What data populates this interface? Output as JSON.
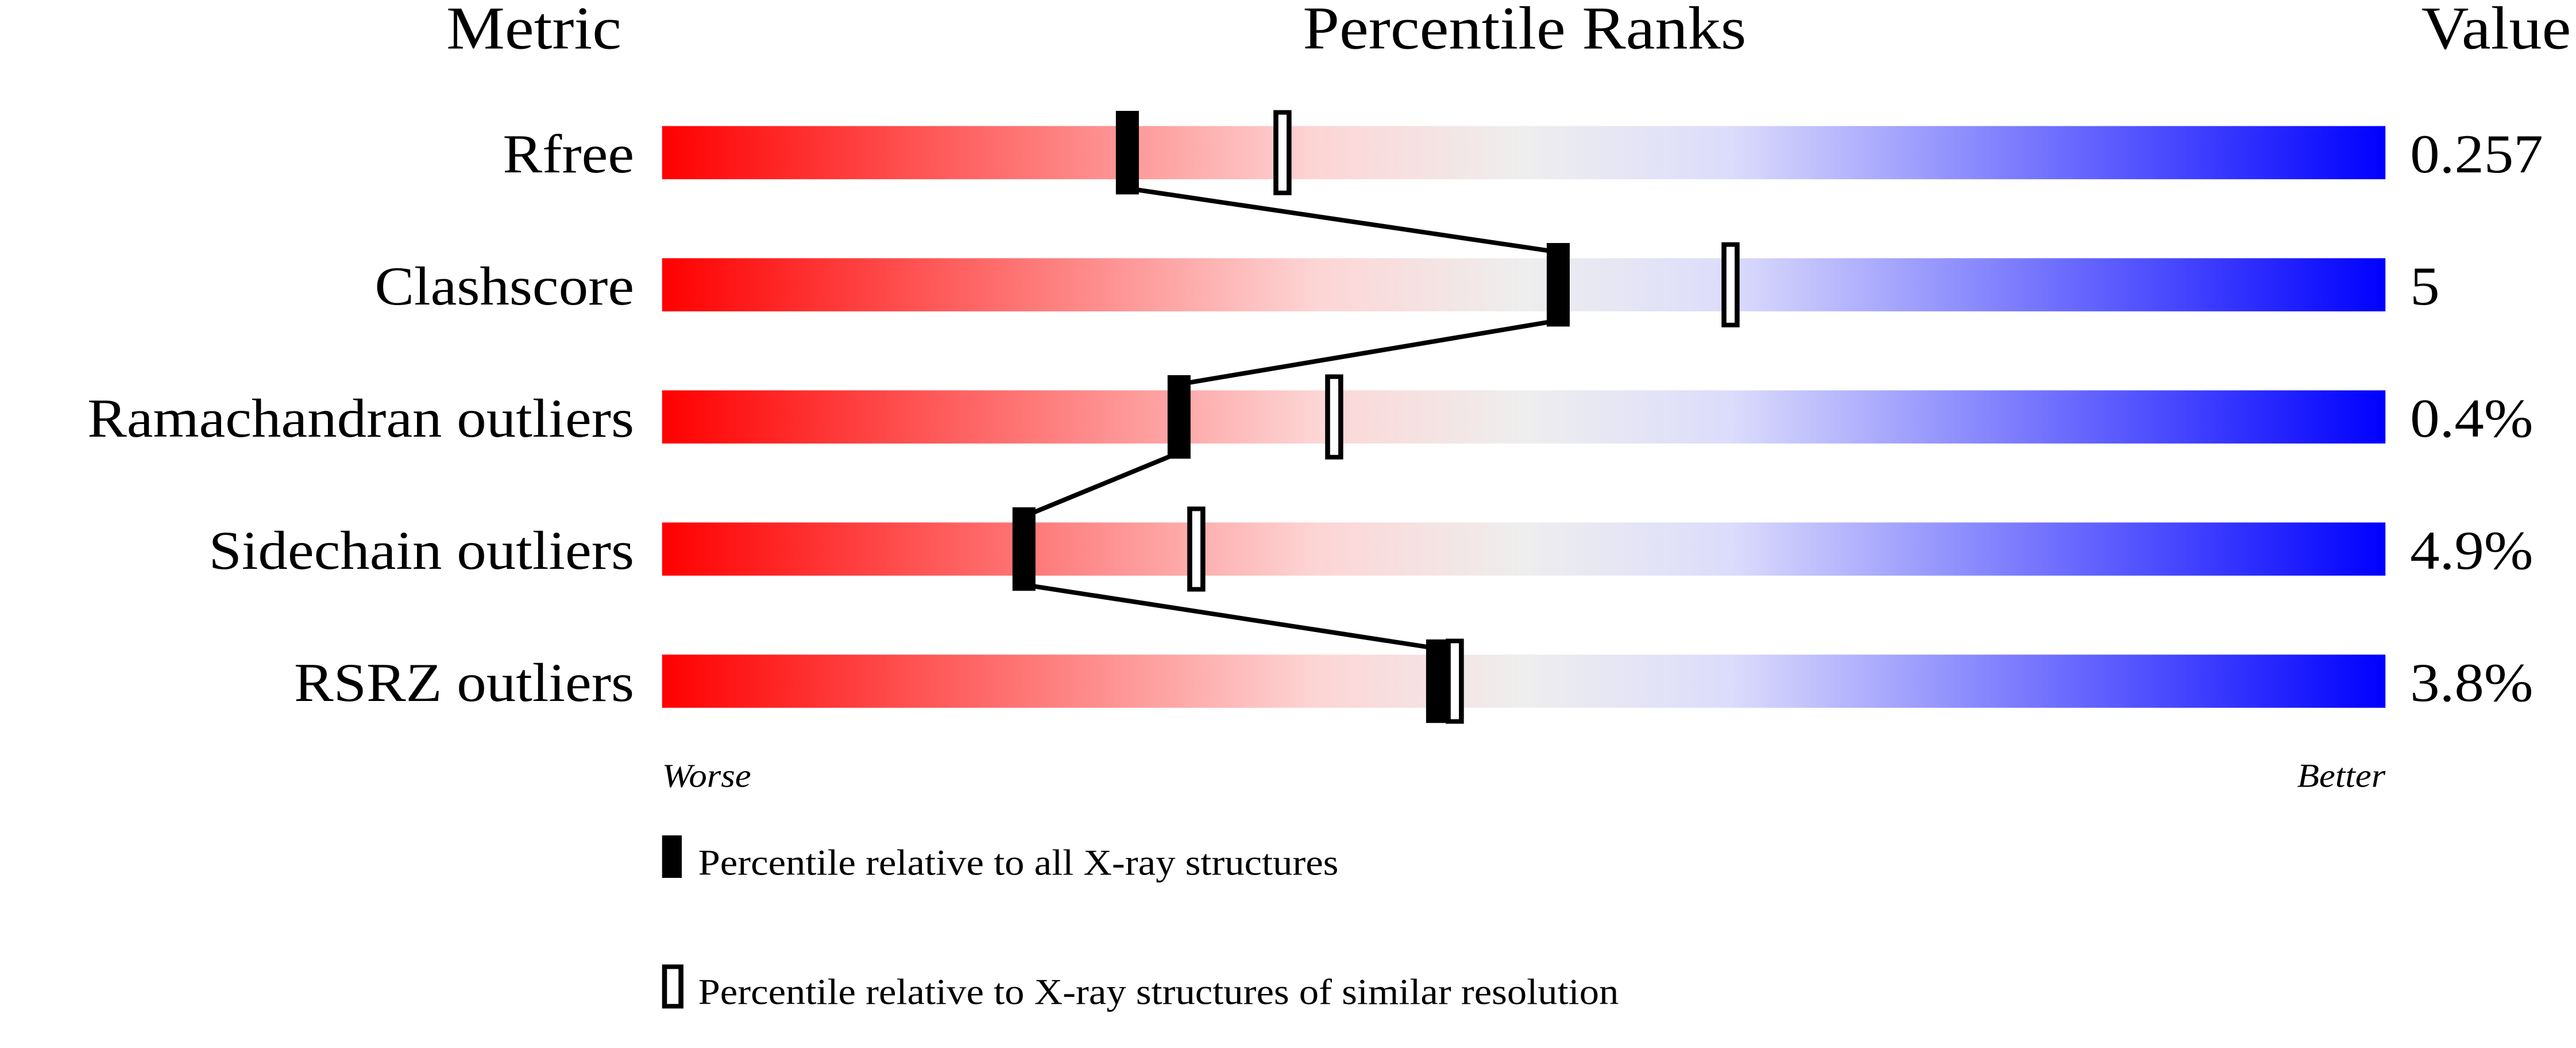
{
  "chart_data": {
    "type": "bar",
    "headers": {
      "metric": "Metric",
      "ranks": "Percentile Ranks",
      "value": "Value"
    },
    "xlim": [
      0,
      100
    ],
    "axis_labels": {
      "left": "Worse",
      "right": "Better"
    },
    "gradient_colors": [
      "#ff0000",
      "#fdd5d5",
      "#eeeeee",
      "#dcdcfc",
      "#0000ff"
    ],
    "rows": [
      {
        "metric": "Rfree",
        "value": "0.257",
        "percentile_all": 27,
        "percentile_similar": 36
      },
      {
        "metric": "Clashscore",
        "value": "5",
        "percentile_all": 52,
        "percentile_similar": 62
      },
      {
        "metric": "Ramachandran outliers",
        "value": "0.4%",
        "percentile_all": 30,
        "percentile_similar": 39
      },
      {
        "metric": "Sidechain outliers",
        "value": "4.9%",
        "percentile_all": 21,
        "percentile_similar": 31
      },
      {
        "metric": "RSRZ outliers",
        "value": "3.8%",
        "percentile_all": 45,
        "percentile_similar": 46
      }
    ],
    "legend": [
      {
        "marker": "filled",
        "label": "Percentile relative to all X-ray structures"
      },
      {
        "marker": "open",
        "label": "Percentile relative to X-ray structures of similar resolution"
      }
    ]
  }
}
